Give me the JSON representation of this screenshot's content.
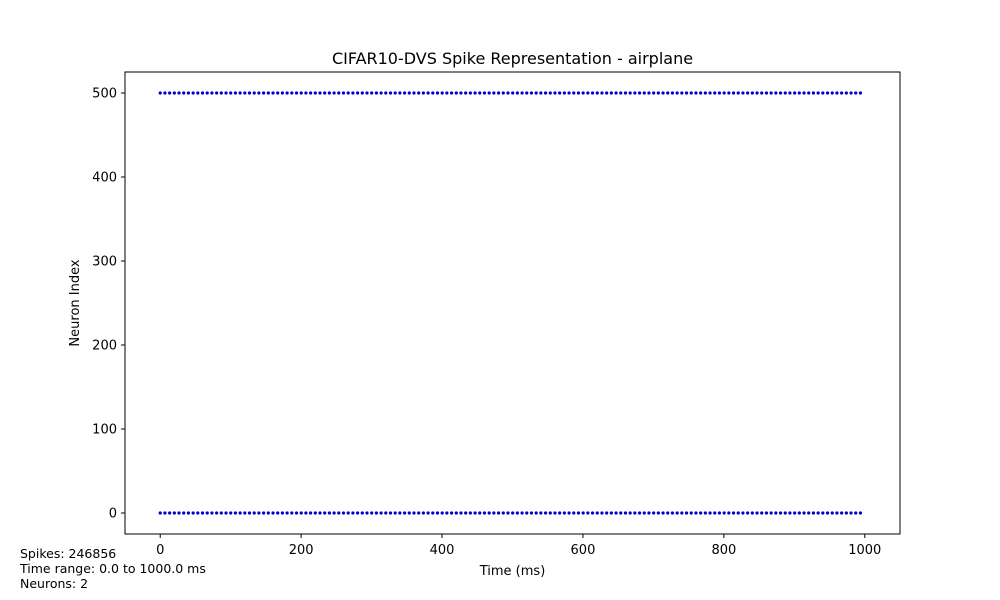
{
  "chart_data": {
    "type": "scatter",
    "title": "CIFAR10-DVS Spike Representation - airplane",
    "xlabel": "Time (ms)",
    "ylabel": "Neuron Index",
    "xlim": [
      -50,
      1050
    ],
    "ylim": [
      -25,
      525
    ],
    "xticks": [
      0,
      200,
      400,
      600,
      800,
      1000
    ],
    "yticks": [
      0,
      100,
      200,
      300,
      400,
      500
    ],
    "grid": false,
    "legend": false,
    "marker_color": "#0000cc",
    "series": [
      {
        "y": 500,
        "x_start": 0,
        "x_end": 1000,
        "x_step": 6.67
      },
      {
        "y": 0,
        "x_start": 0,
        "x_end": 1000,
        "x_step": 6.67
      }
    ]
  },
  "stats": {
    "spikes": "Spikes: 246856",
    "time_range": "Time range: 0.0 to 1000.0 ms",
    "neurons": "Neurons: 2"
  }
}
